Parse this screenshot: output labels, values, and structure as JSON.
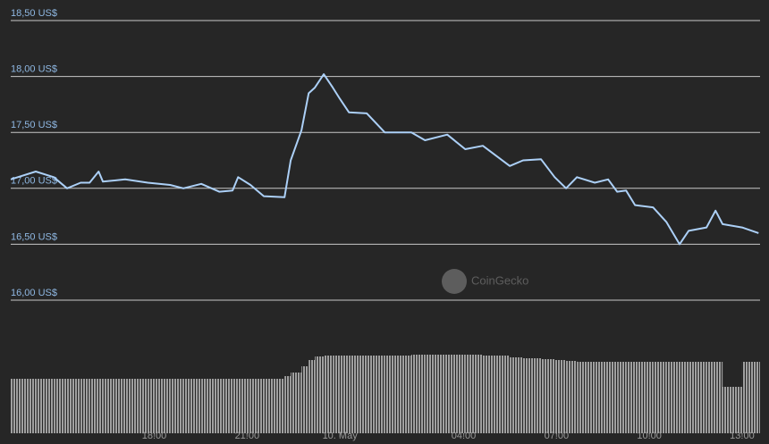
{
  "chart_data": {
    "type": "line",
    "watermark": "CoinGecko",
    "x": [
      -10.64,
      -9.83,
      -9.25,
      -8.82,
      -8.38,
      -8.09,
      -7.8,
      -7.66,
      -6.94,
      -6.21,
      -5.49,
      -5.06,
      -4.48,
      -3.9,
      -3.47,
      -3.29,
      -2.89,
      -2.46,
      -1.79,
      -1.59,
      -1.24,
      -1.01,
      -0.81,
      -0.52,
      -0.23,
      0,
      0.29,
      0.87,
      1.45,
      2.31,
      2.75,
      3.47,
      4.05,
      4.62,
      5.49,
      5.92,
      6.5,
      6.94,
      7.31,
      7.66,
      8.24,
      8.67,
      8.96,
      9.25,
      9.54,
      10.12,
      10.55,
      10.98,
      11.27,
      11.85,
      12.14,
      12.37,
      13.0,
      13.53
    ],
    "series": [
      {
        "color": "#acd0f7",
        "values": [
          17.08,
          17.15,
          17.1,
          17.0,
          17.05,
          17.05,
          17.15,
          17.06,
          17.08,
          17.05,
          17.03,
          17.0,
          17.04,
          16.97,
          16.98,
          17.1,
          17.03,
          16.93,
          16.92,
          17.25,
          17.52,
          17.85,
          17.9,
          18.02,
          17.9,
          17.8,
          17.68,
          17.67,
          17.5,
          17.5,
          17.43,
          17.48,
          17.35,
          17.38,
          17.2,
          17.25,
          17.26,
          17.1,
          17.0,
          17.1,
          17.05,
          17.08,
          16.97,
          16.98,
          16.85,
          16.83,
          16.7,
          16.5,
          16.62,
          16.65,
          16.8,
          16.68,
          16.65,
          16.6
        ]
      },
      {
        "type": "bar",
        "axis": "y2",
        "color": "#9a9a9a",
        "values": [
          61,
          61,
          61,
          61,
          61,
          61,
          61,
          61,
          61,
          61,
          61,
          61,
          61,
          61,
          61,
          61,
          61,
          61,
          64,
          68,
          75,
          82,
          86,
          87,
          87,
          87,
          87,
          87,
          87,
          88,
          88,
          88,
          88,
          87,
          85,
          84,
          83,
          82,
          81,
          80,
          80,
          80,
          80,
          80,
          80,
          80,
          80,
          80,
          80,
          80,
          80,
          52,
          80,
          80
        ]
      }
    ],
    "xlim": [
      -10.64,
      13.58
    ],
    "xticks": [
      {
        "value": -6,
        "label": "18:00"
      },
      {
        "value": -3,
        "label": "21:00"
      },
      {
        "value": 0,
        "label": "10. May"
      },
      {
        "value": 4,
        "label": "04:00"
      },
      {
        "value": 7,
        "label": "07:00"
      },
      {
        "value": 10,
        "label": "10:00"
      },
      {
        "value": 13,
        "label": "13:00"
      }
    ],
    "ylim": [
      16,
      18.5
    ],
    "yticks": [
      {
        "value": 16,
        "label": "16,00 US$"
      },
      {
        "value": 16.5,
        "label": "16,50 US$"
      },
      {
        "value": 17,
        "label": "17,00 US$"
      },
      {
        "value": 17.5,
        "label": "17,50 US$"
      },
      {
        "value": 18,
        "label": "18,00 US$"
      },
      {
        "value": 18.5,
        "label": "18,50 US$"
      }
    ],
    "y2lim": [
      0,
      100
    ],
    "grid": true
  }
}
